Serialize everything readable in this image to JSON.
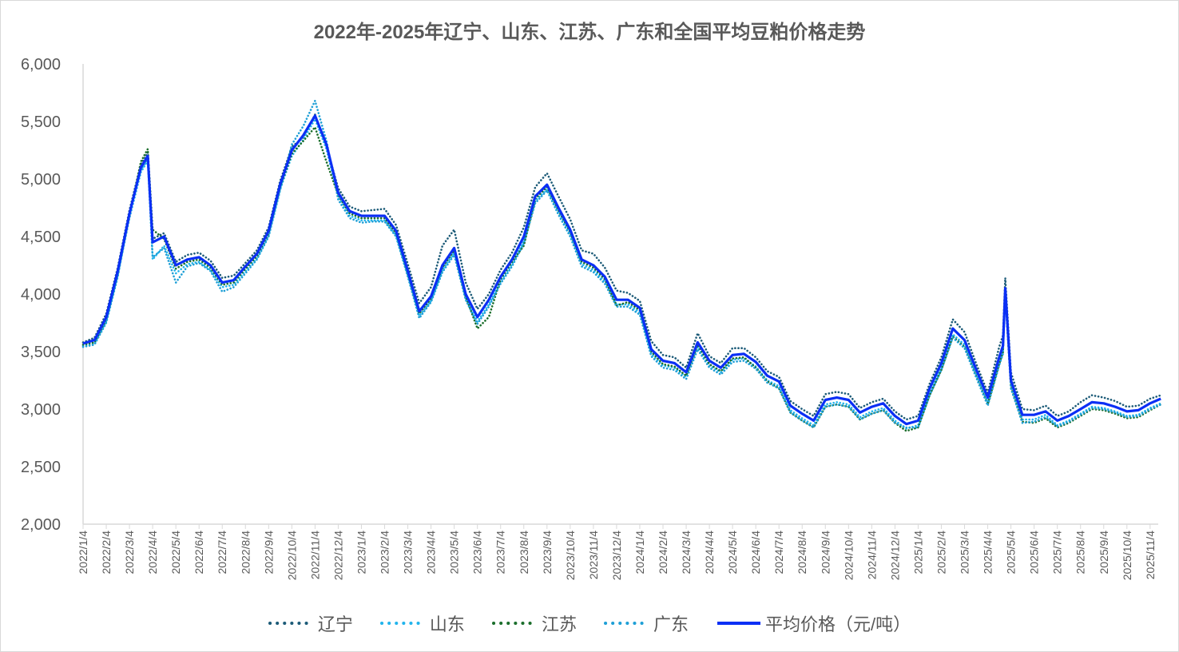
{
  "chart_data": {
    "type": "line",
    "title": "2022年-2025年辽宁、山东、江苏、广东和全国平均豆粕价格走势",
    "xlabel": "",
    "ylabel": "",
    "ylim": [
      2000,
      6000
    ],
    "yticks": [
      "2,000",
      "2,500",
      "3,000",
      "3,500",
      "4,000",
      "4,500",
      "5,000",
      "5,500",
      "6,000"
    ],
    "ytick_values": [
      2000,
      2500,
      3000,
      3500,
      4000,
      4500,
      5000,
      5500,
      6000
    ],
    "xticks": [
      "2022/1/4",
      "2022/2/4",
      "2022/3/4",
      "2022/4/4",
      "2022/5/4",
      "2022/6/4",
      "2022/7/4",
      "2022/8/4",
      "2022/9/4",
      "2022/10/4",
      "2022/11/4",
      "2022/12/4",
      "2023/1/4",
      "2023/2/4",
      "2023/3/4",
      "2023/4/4",
      "2023/5/4",
      "2023/6/4",
      "2023/7/4",
      "2023/8/4",
      "2023/9/4",
      "2023/10/4",
      "2023/11/4",
      "2023/12/4",
      "2024/1/4",
      "2024/2/4",
      "2024/3/4",
      "2024/4/4",
      "2024/5/4",
      "2024/6/4",
      "2024/7/4",
      "2024/8/4",
      "2024/9/4",
      "2024/10/4",
      "2024/11/4",
      "2024/12/4",
      "2025/1/4",
      "2025/2/4",
      "2025/3/4",
      "2025/4/4",
      "2025/5/4",
      "2025/6/4",
      "2025/7/4",
      "2025/8/4",
      "2025/9/4",
      "2025/10/4",
      "2025/11/4"
    ],
    "grid": false,
    "legend_position": "bottom",
    "series": [
      {
        "name": "辽宁",
        "color": "#1c5b78",
        "style": "dotted"
      },
      {
        "name": "山东",
        "color": "#22b4ec",
        "style": "dotted"
      },
      {
        "name": "江苏",
        "color": "#1b6e2c",
        "style": "dotted"
      },
      {
        "name": "广东",
        "color": "#1e9fd6",
        "style": "dotted"
      },
      {
        "name": "平均价格（元/吨）",
        "color": "#0b2ff5",
        "style": "solid"
      }
    ],
    "columns": [
      "date",
      "辽宁",
      "山东",
      "江苏",
      "广东",
      "平均价格（元/吨）"
    ],
    "rows": [
      [
        "2022/1/4",
        3580,
        3550,
        3560,
        3540,
        3570
      ],
      [
        "2022/1/19",
        3620,
        3570,
        3580,
        3560,
        3600
      ],
      [
        "2022/2/4",
        3830,
        3760,
        3780,
        3750,
        3800
      ],
      [
        "2022/2/19",
        4230,
        4160,
        4180,
        4150,
        4200
      ],
      [
        "2022/3/4",
        4730,
        4660,
        4680,
        4700,
        4700
      ],
      [
        "2022/3/19",
        5130,
        5060,
        5150,
        5080,
        5100
      ],
      [
        "2022/3/28",
        5230,
        5160,
        5260,
        5180,
        5200
      ],
      [
        "2022/4/4",
        4480,
        4300,
        4560,
        4320,
        4450
      ],
      [
        "2022/4/19",
        4530,
        4420,
        4480,
        4400,
        4500
      ],
      [
        "2022/5/4",
        4280,
        4180,
        4220,
        4100,
        4250
      ],
      [
        "2022/5/19",
        4340,
        4260,
        4280,
        4240,
        4300
      ],
      [
        "2022/6/4",
        4360,
        4280,
        4300,
        4270,
        4320
      ],
      [
        "2022/6/19",
        4290,
        4210,
        4230,
        4200,
        4250
      ],
      [
        "2022/7/4",
        4140,
        4060,
        4080,
        4020,
        4100
      ],
      [
        "2022/7/19",
        4160,
        4080,
        4100,
        4060,
        4120
      ],
      [
        "2022/8/4",
        4270,
        4200,
        4220,
        4180,
        4240
      ],
      [
        "2022/8/19",
        4380,
        4310,
        4330,
        4300,
        4350
      ],
      [
        "2022/9/4",
        4580,
        4510,
        4530,
        4500,
        4550
      ],
      [
        "2022/9/19",
        4980,
        4910,
        4930,
        4900,
        4950
      ],
      [
        "2022/10/4",
        5280,
        5200,
        5220,
        5300,
        5250
      ],
      [
        "2022/10/19",
        5360,
        5340,
        5330,
        5460,
        5380
      ],
      [
        "2022/11/4",
        5560,
        5520,
        5450,
        5680,
        5550
      ],
      [
        "2022/11/19",
        5280,
        5260,
        5150,
        5330,
        5300
      ],
      [
        "2022/12/4",
        4920,
        4840,
        4860,
        4820,
        4880
      ],
      [
        "2022/12/19",
        4760,
        4680,
        4700,
        4660,
        4720
      ],
      [
        "2023/1/4",
        4720,
        4640,
        4660,
        4620,
        4680
      ],
      [
        "2023/1/19",
        4730,
        4640,
        4660,
        4630,
        4680
      ],
      [
        "2023/2/4",
        4740,
        4640,
        4660,
        4630,
        4680
      ],
      [
        "2023/2/19",
        4600,
        4510,
        4530,
        4500,
        4550
      ],
      [
        "2023/3/4",
        4260,
        4160,
        4180,
        4150,
        4200
      ],
      [
        "2023/3/19",
        3920,
        3810,
        3830,
        3790,
        3850
      ],
      [
        "2023/4/4",
        4060,
        3940,
        3960,
        3930,
        3980
      ],
      [
        "2023/4/19",
        4420,
        4210,
        4230,
        4190,
        4250
      ],
      [
        "2023/5/4",
        4560,
        4360,
        4380,
        4340,
        4400
      ],
      [
        "2023/5/19",
        4100,
        3960,
        3980,
        3950,
        4000
      ],
      [
        "2023/6/4",
        3870,
        3760,
        3700,
        3740,
        3800
      ],
      [
        "2023/6/19",
        4000,
        3910,
        3800,
        3890,
        3950
      ],
      [
        "2023/7/4",
        4210,
        4110,
        4130,
        4090,
        4150
      ],
      [
        "2023/7/19",
        4360,
        4260,
        4280,
        4240,
        4300
      ],
      [
        "2023/8/4",
        4580,
        4460,
        4420,
        4440,
        4500
      ],
      [
        "2023/8/19",
        4930,
        4810,
        4830,
        4790,
        4850
      ],
      [
        "2023/9/4",
        5050,
        4910,
        4930,
        4900,
        4950
      ],
      [
        "2023/9/19",
        4850,
        4710,
        4730,
        4690,
        4750
      ],
      [
        "2023/10/4",
        4650,
        4520,
        4540,
        4500,
        4560
      ],
      [
        "2023/10/19",
        4380,
        4260,
        4280,
        4240,
        4300
      ],
      [
        "2023/11/4",
        4350,
        4210,
        4230,
        4190,
        4250
      ],
      [
        "2023/11/19",
        4230,
        4110,
        4130,
        4090,
        4150
      ],
      [
        "2023/12/4",
        4030,
        3910,
        3900,
        3890,
        3950
      ],
      [
        "2023/12/19",
        4010,
        3910,
        3930,
        3890,
        3950
      ],
      [
        "2024/1/4",
        3940,
        3840,
        3860,
        3820,
        3880
      ],
      [
        "2024/1/19",
        3590,
        3480,
        3500,
        3460,
        3520
      ],
      [
        "2024/2/4",
        3470,
        3380,
        3390,
        3360,
        3420
      ],
      [
        "2024/2/19",
        3450,
        3360,
        3370,
        3340,
        3400
      ],
      [
        "2024/3/4",
        3360,
        3280,
        3290,
        3260,
        3320
      ],
      [
        "2024/3/19",
        3660,
        3540,
        3560,
        3520,
        3580
      ],
      [
        "2024/4/4",
        3460,
        3380,
        3390,
        3360,
        3420
      ],
      [
        "2024/4/19",
        3400,
        3320,
        3330,
        3300,
        3360
      ],
      [
        "2024/5/4",
        3530,
        3430,
        3440,
        3410,
        3470
      ],
      [
        "2024/5/19",
        3530,
        3440,
        3450,
        3420,
        3480
      ],
      [
        "2024/6/4",
        3450,
        3370,
        3360,
        3350,
        3410
      ],
      [
        "2024/6/19",
        3330,
        3250,
        3240,
        3230,
        3290
      ],
      [
        "2024/7/4",
        3280,
        3200,
        3180,
        3180,
        3240
      ],
      [
        "2024/7/19",
        3070,
        2990,
        2970,
        2970,
        3030
      ],
      [
        "2024/8/4",
        3000,
        2920,
        2900,
        2900,
        2960
      ],
      [
        "2024/8/19",
        2940,
        2860,
        2840,
        2840,
        2900
      ],
      [
        "2024/9/4",
        3130,
        3040,
        3020,
        3020,
        3080
      ],
      [
        "2024/9/19",
        3150,
        3060,
        3040,
        3040,
        3100
      ],
      [
        "2024/10/4",
        3130,
        3040,
        3020,
        3020,
        3080
      ],
      [
        "2024/10/19",
        3010,
        2930,
        2910,
        2910,
        2970
      ],
      [
        "2024/11/4",
        3060,
        2980,
        2960,
        2960,
        3020
      ],
      [
        "2024/11/19",
        3090,
        3010,
        2990,
        2990,
        3050
      ],
      [
        "2024/12/4",
        2980,
        2900,
        2880,
        2880,
        2940
      ],
      [
        "2024/12/19",
        2910,
        2830,
        2810,
        2840,
        2870
      ],
      [
        "2025/1/4",
        2940,
        2860,
        2840,
        2840,
        2900
      ],
      [
        "2025/1/19",
        3220,
        3140,
        3120,
        3120,
        3180
      ],
      [
        "2025/2/4",
        3450,
        3360,
        3340,
        3340,
        3400
      ],
      [
        "2025/2/19",
        3780,
        3650,
        3630,
        3620,
        3700
      ],
      [
        "2025/3/4",
        3670,
        3560,
        3540,
        3530,
        3600
      ],
      [
        "2025/3/19",
        3400,
        3310,
        3290,
        3280,
        3350
      ],
      [
        "2025/4/4",
        3140,
        3060,
        3040,
        3030,
        3100
      ],
      [
        "2025/4/19",
        3540,
        3410,
        3390,
        3380,
        3450
      ],
      [
        "2025/4/24",
        3640,
        3510,
        3490,
        3480,
        3550
      ],
      [
        "2025/4/27",
        4140,
        4000,
        4020,
        3980,
        4050
      ],
      [
        "2025/5/4",
        3320,
        3210,
        3190,
        3180,
        3250
      ],
      [
        "2025/5/19",
        3000,
        2910,
        2890,
        2880,
        2950
      ],
      [
        "2025/6/4",
        2990,
        2910,
        2880,
        2890,
        2950
      ],
      [
        "2025/6/19",
        3030,
        2950,
        2920,
        2930,
        2980
      ],
      [
        "2025/7/4",
        2940,
        2860,
        2840,
        2850,
        2900
      ],
      [
        "2025/7/19",
        2980,
        2900,
        2880,
        2890,
        2940
      ],
      [
        "2025/8/4",
        3060,
        2960,
        2940,
        2950,
        3000
      ],
      [
        "2025/8/19",
        3120,
        3020,
        3000,
        3010,
        3060
      ],
      [
        "2025/9/4",
        3100,
        3010,
        2990,
        3000,
        3050
      ],
      [
        "2025/9/19",
        3070,
        2980,
        2960,
        2970,
        3020
      ],
      [
        "2025/10/4",
        3020,
        2940,
        2920,
        2930,
        2980
      ],
      [
        "2025/10/19",
        3030,
        2950,
        2930,
        2940,
        2990
      ],
      [
        "2025/11/4",
        3090,
        3010,
        2990,
        3000,
        3050
      ],
      [
        "2025/11/18",
        3120,
        3050,
        3040,
        3040,
        3090
      ]
    ]
  }
}
